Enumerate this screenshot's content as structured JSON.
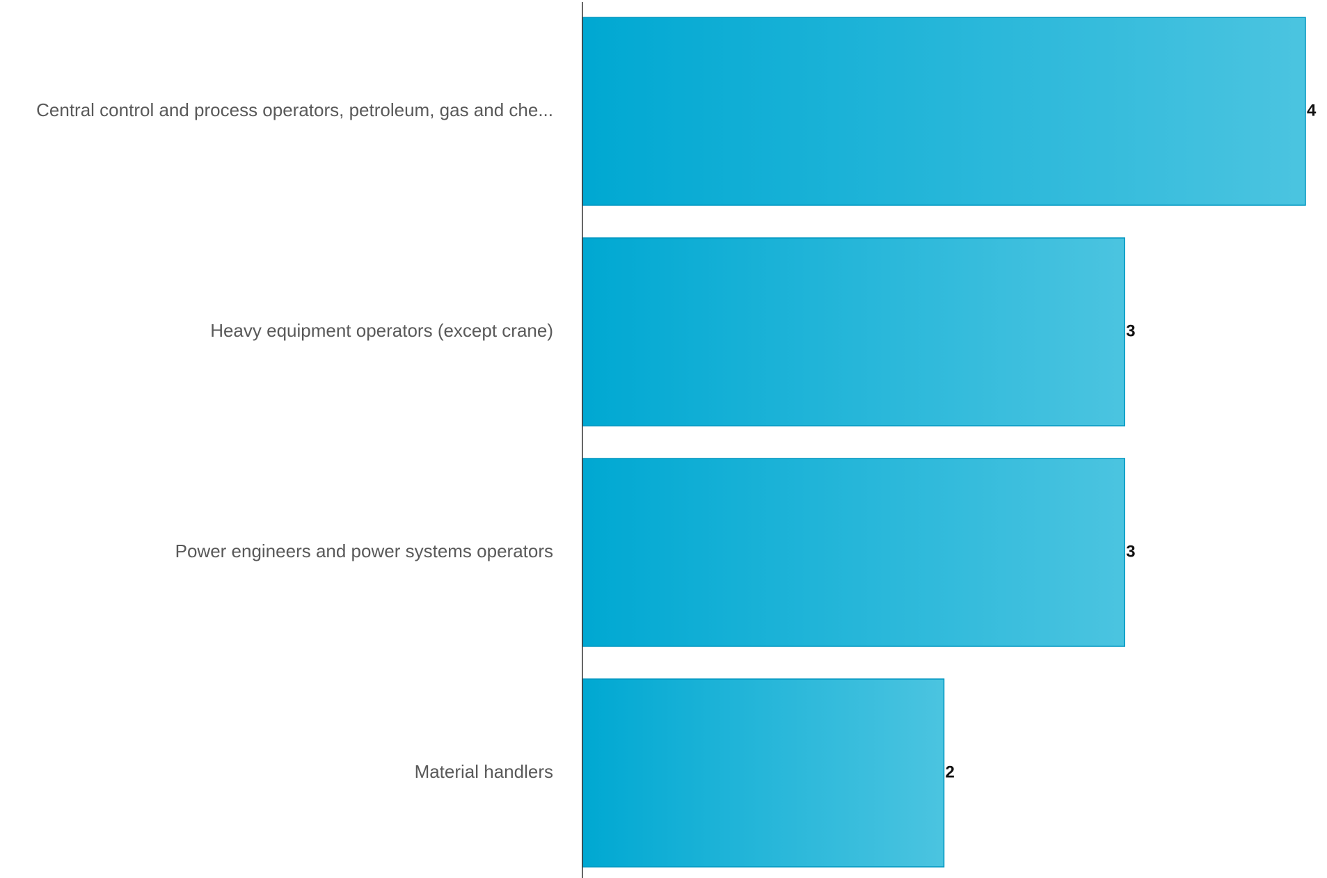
{
  "chart_data": {
    "type": "bar",
    "orientation": "horizontal",
    "categories": [
      "Central control and process operators, petroleum, gas and che...",
      "Heavy equipment operators (except crane)",
      "Power engineers and power systems operators",
      "Material handlers"
    ],
    "values": [
      4,
      3,
      3,
      2
    ],
    "xlim": [
      0,
      4
    ],
    "grid": false,
    "legend": "none",
    "title": "",
    "xlabel": "",
    "ylabel": "",
    "colors": {
      "bar_start": "#00a8d2",
      "bar_end": "#4bc4e0",
      "bar_stroke": "#0096c0",
      "axis": "#333333"
    }
  }
}
